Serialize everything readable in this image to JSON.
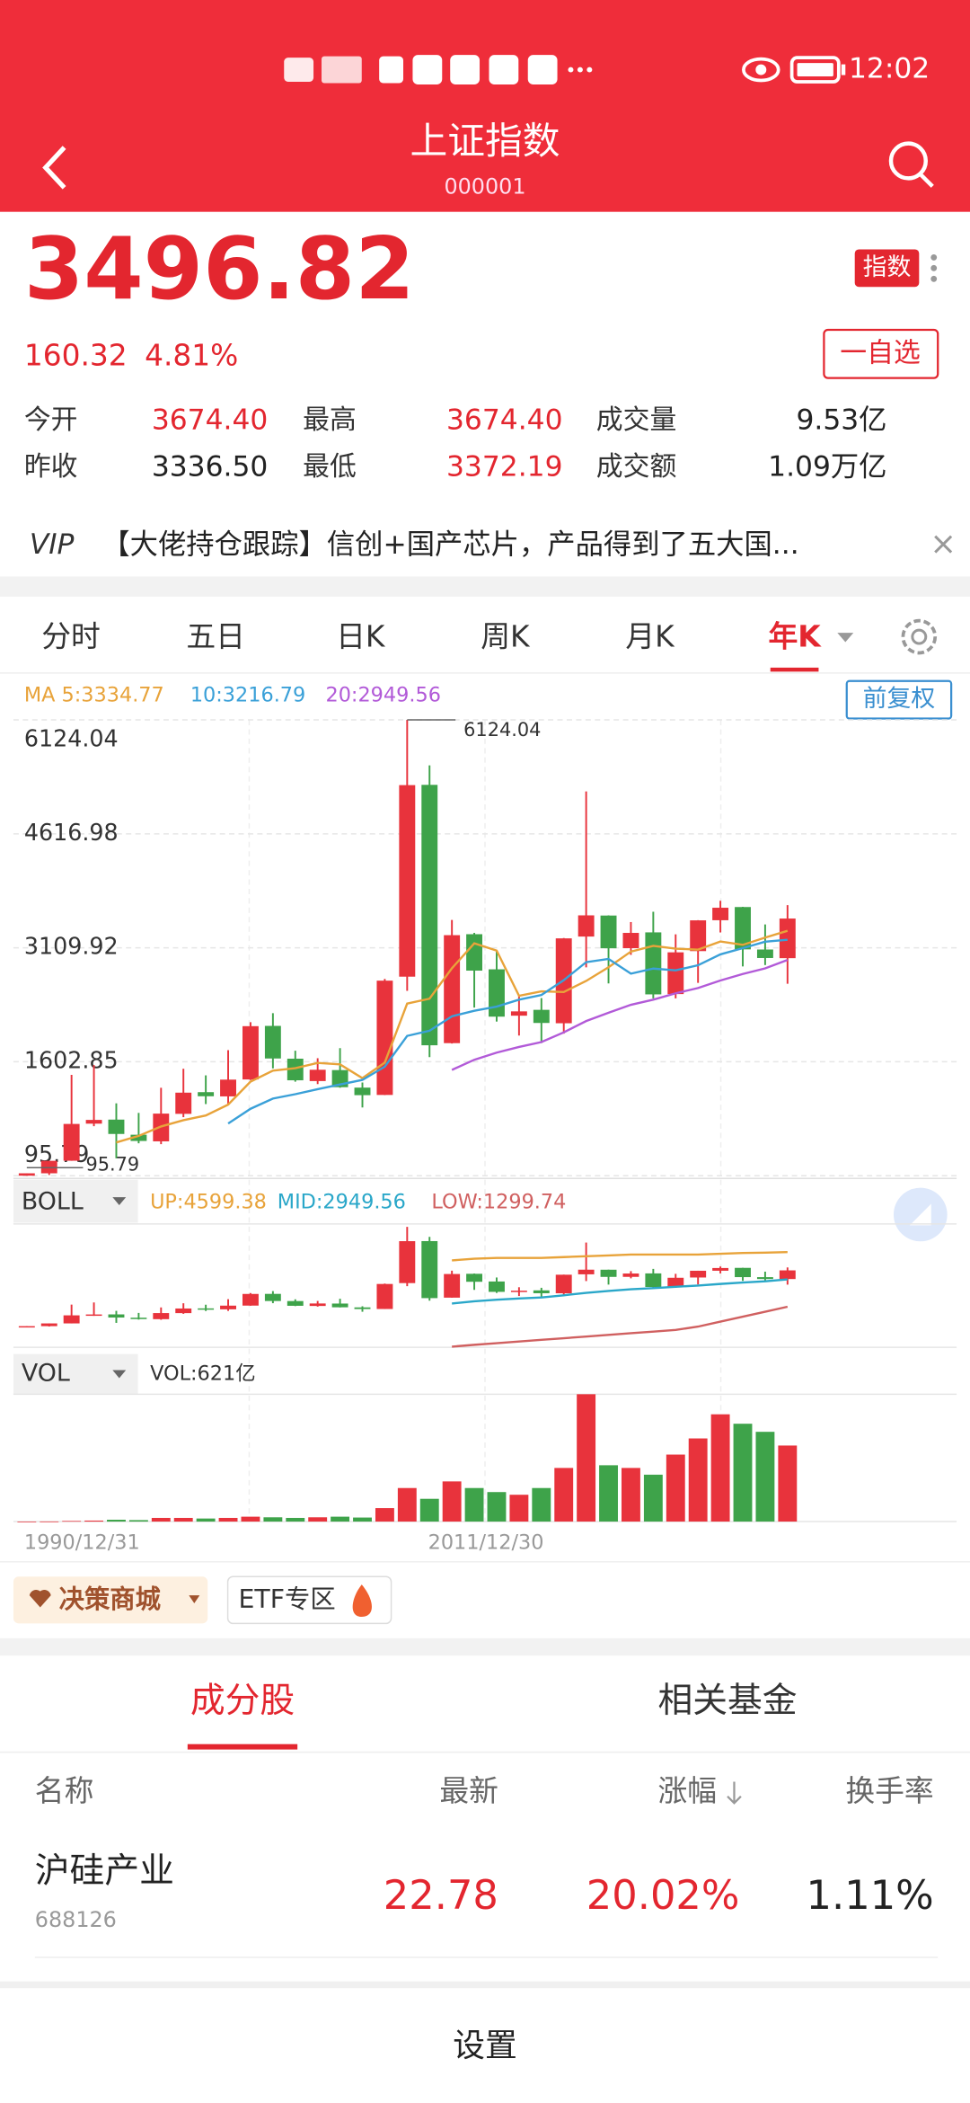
{
  "status_bar": {
    "time": "12:02"
  },
  "header": {
    "title": "上证指数",
    "code": "000001"
  },
  "quote": {
    "price": "3496.82",
    "change": "160.32",
    "change_pct": "4.81%",
    "tag": "指数",
    "watch": "一自选",
    "stats": [
      [
        {
          "label": "今开",
          "value": "3674.40",
          "color": "#e3262f"
        },
        {
          "label": "最高",
          "value": "3674.40",
          "color": "#e3262f"
        },
        {
          "label": "成交量",
          "value": "9.53亿",
          "color": "#222222"
        }
      ],
      [
        {
          "label": "昨收",
          "value": "3336.50",
          "color": "#222222"
        },
        {
          "label": "最低",
          "value": "3372.19",
          "color": "#e3262f"
        },
        {
          "label": "成交额",
          "value": "1.09万亿",
          "color": "#222222"
        }
      ]
    ]
  },
  "news": {
    "badge": "VIP",
    "text": "【大佬持仓跟踪】信创+国产芯片，产品得到了五大国..."
  },
  "tabs": {
    "items": [
      "分时",
      "五日",
      "日K",
      "周K",
      "月K",
      "年K"
    ],
    "active": 5
  },
  "adjust": "前复权",
  "chart_data": {
    "type": "candlestick",
    "categories": [
      "1990/12/31",
      null,
      null,
      null,
      null,
      null,
      null,
      null,
      null,
      null,
      null,
      null,
      null,
      null,
      null,
      null,
      null,
      null,
      null,
      null,
      null,
      "2011/12/30",
      null,
      null,
      null,
      null,
      null,
      null,
      null,
      null,
      null,
      null,
      null,
      null,
      null
    ],
    "open": [
      96.05,
      127.61,
      293.75,
      784.13,
      837.7,
      637.72,
      550.26,
      914.06,
      1200.95,
      1144.89,
      1368.69,
      2077.08,
      1643.48,
      1347.43,
      1492.72,
      1260.78,
      1163.88,
      2728.19,
      5265,
      1849.02,
      3289.75,
      2825.33,
      2212,
      2289.51,
      2112.13,
      3258.63,
      3536.59,
      3105.31,
      3314.03,
      2497.88,
      3066.34,
      3474.68,
      3649.15,
      3087.51,
      2972.78
    ],
    "high": [
      127.61,
      292.75,
      1429.01,
      1558.95,
      1052.94,
      926.41,
      1258.69,
      1510.18,
      1422.98,
      1756.18,
      2125.72,
      2245.43,
      1748.89,
      1649.6,
      1783.01,
      1328.53,
      2698.9,
      6124.04,
      5522.78,
      3478.01,
      3306.75,
      3067.46,
      2478.38,
      2444.8,
      3239.36,
      5178.19,
      3538.69,
      3450.49,
      3587.03,
      3288.45,
      3474.92,
      3731.69,
      3651.89,
      3418.95,
      3674.4
    ],
    "low": [
      95.79,
      104.96,
      292.76,
      750.46,
      325.89,
      524.43,
      512.83,
      870.18,
      1043.02,
      1047.83,
      1361.21,
      1514.86,
      1339.2,
      1307.4,
      1259.43,
      998.23,
      1161.91,
      2541.52,
      1664.93,
      1844.09,
      2319.74,
      2134.02,
      1949.46,
      1849.65,
      1974.38,
      2850.71,
      2638.3,
      3016.53,
      2440.91,
      2440.91,
      2646.8,
      3312.72,
      2863.65,
      2882.02,
      2635.09
    ],
    "close": [
      127.61,
      292.75,
      780.39,
      833.8,
      647.87,
      555.29,
      917.02,
      1194.1,
      1146.7,
      1366.58,
      2073.48,
      1645.97,
      1357.65,
      1497.04,
      1266.5,
      1161.06,
      2675.47,
      5261.56,
      1820.81,
      3277.14,
      2808.08,
      2199.42,
      2269.13,
      2115.98,
      3234.68,
      3539.18,
      3103.64,
      3307.17,
      2493.9,
      3050.12,
      3473.07,
      3639.78,
      3089.26,
      2974.93,
      3496.82
    ],
    "up_color": "#e8333c",
    "down_color": "#3ea34a",
    "ylim": [
      95.79,
      6124.04
    ],
    "yticks": [
      95.79,
      1602.85,
      3109.92,
      4616.98,
      6124.04
    ],
    "grid": true,
    "max_annotation": 6124.04,
    "min_annotation": 95.79,
    "series": [
      {
        "name": "MA 5:3334.77",
        "color": "#e8a33a",
        "values": [
          null,
          null,
          null,
          null,
          536,
          622,
          747,
          830,
          892,
          1036,
          1340,
          1485,
          1518,
          1588,
          1568,
          1386,
          1592,
          2372,
          2437,
          2839,
          3169,
          3073,
          2475,
          2534,
          2525,
          2672,
          2853,
          3060,
          3136,
          3099,
          3086,
          3193,
          3149,
          3245,
          3334.77
        ]
      },
      {
        "name": "10:3216.79",
        "color": "#3aa0d8",
        "values": [
          null,
          null,
          null,
          null,
          null,
          null,
          null,
          null,
          null,
          786,
          981,
          1116,
          1174,
          1240,
          1302,
          1363,
          1538,
          1945,
          2013,
          2204,
          2277,
          2332,
          2424,
          2486,
          2682,
          2920,
          2963,
          2768,
          2835,
          2812,
          2879,
          3023,
          3105,
          3191,
          3216.79
        ]
      },
      {
        "name": "20:2949.56",
        "color": "#b25ad8",
        "values": [
          null,
          null,
          null,
          null,
          null,
          null,
          null,
          null,
          null,
          null,
          null,
          null,
          null,
          null,
          null,
          null,
          null,
          null,
          null,
          1495,
          1629,
          1724,
          1799,
          1863,
          1992,
          2141,
          2251,
          2356,
          2424,
          2508,
          2578,
          2678,
          2764,
          2838,
          2949.56
        ]
      }
    ],
    "boll": {
      "label": "BOLL",
      "up_label": "UP:4599.38",
      "mid_label": "MID:2949.56",
      "low_label": "LOW:1299.74",
      "ylim": [
        -1150,
        6300
      ],
      "up_color": "#e8a33a",
      "mid_color": "#2aa7c9",
      "low_color": "#d06060",
      "up": [
        null,
        null,
        null,
        null,
        null,
        null,
        null,
        null,
        null,
        null,
        null,
        null,
        null,
        null,
        null,
        null,
        null,
        null,
        null,
        4100,
        4200,
        4250,
        4250,
        4250,
        4300,
        4350,
        4400,
        4450,
        4450,
        4450,
        4450,
        4500,
        4550,
        4570,
        4599.38
      ],
      "low": [
        null,
        null,
        null,
        null,
        null,
        null,
        null,
        null,
        null,
        null,
        null,
        null,
        null,
        null,
        null,
        null,
        null,
        null,
        null,
        -1110,
        -1000,
        -900,
        -800,
        -700,
        -600,
        -500,
        -400,
        -300,
        -200,
        -100,
        100,
        400,
        700,
        1000,
        1299.74
      ]
    },
    "volume": {
      "label": "VOL",
      "value_label": "VOL:621亿",
      "ylim": [
        0,
        1040
      ],
      "values": [
        0.1,
        1,
        5,
        8,
        15,
        12,
        30,
        30,
        25,
        30,
        40,
        35,
        30,
        35,
        40,
        33,
        110,
        274,
        186,
        328,
        274,
        241,
        219,
        274,
        438,
        1040,
        460,
        438,
        383,
        547,
        679,
        876,
        799,
        733,
        621
      ]
    }
  },
  "chips": [
    "决策商城",
    "ETF专区"
  ],
  "sections": {
    "items": [
      "成分股",
      "相关基金"
    ],
    "active": 0
  },
  "table": {
    "header": [
      "名称",
      "最新",
      "涨幅",
      "换手率"
    ],
    "rows": [
      {
        "name": "沪硅产业",
        "code": "688126",
        "price": "22.78",
        "change": "20.02%",
        "turnover": "1.11%"
      }
    ]
  },
  "footer": {
    "button": "设置"
  }
}
